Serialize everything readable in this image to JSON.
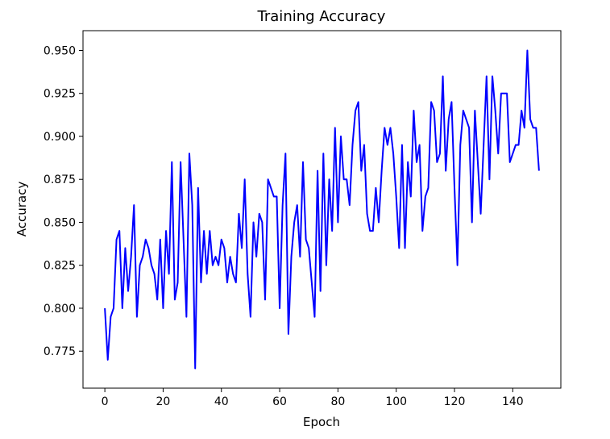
{
  "chart_data": {
    "type": "line",
    "title": "Training Accuracy",
    "xlabel": "Epoch",
    "ylabel": "Accuracy",
    "xlim": [
      -7.5,
      156.5
    ],
    "ylim": [
      0.7535,
      0.9615
    ],
    "x_ticks": [
      0,
      20,
      40,
      60,
      80,
      100,
      120,
      140
    ],
    "y_ticks": [
      0.775,
      0.8,
      0.825,
      0.85,
      0.875,
      0.9,
      0.925,
      0.95
    ],
    "y_tick_labels": [
      "0.775",
      "0.800",
      "0.825",
      "0.850",
      "0.875",
      "0.900",
      "0.925",
      "0.950"
    ],
    "grid": false,
    "legend": "none",
    "series": [
      {
        "color": "#0000ff",
        "x_start": 0,
        "x_step": 1,
        "values": [
          0.8,
          0.77,
          0.795,
          0.8,
          0.84,
          0.845,
          0.8,
          0.835,
          0.81,
          0.83,
          0.86,
          0.795,
          0.825,
          0.83,
          0.84,
          0.835,
          0.825,
          0.82,
          0.805,
          0.84,
          0.8,
          0.845,
          0.82,
          0.885,
          0.805,
          0.815,
          0.885,
          0.84,
          0.795,
          0.89,
          0.86,
          0.765,
          0.87,
          0.815,
          0.845,
          0.82,
          0.845,
          0.825,
          0.83,
          0.825,
          0.84,
          0.835,
          0.815,
          0.83,
          0.82,
          0.815,
          0.855,
          0.835,
          0.875,
          0.82,
          0.795,
          0.85,
          0.83,
          0.855,
          0.85,
          0.805,
          0.875,
          0.87,
          0.865,
          0.865,
          0.8,
          0.86,
          0.89,
          0.785,
          0.83,
          0.85,
          0.86,
          0.83,
          0.885,
          0.84,
          0.835,
          0.815,
          0.795,
          0.88,
          0.81,
          0.89,
          0.825,
          0.875,
          0.845,
          0.905,
          0.85,
          0.9,
          0.875,
          0.875,
          0.86,
          0.895,
          0.915,
          0.92,
          0.88,
          0.895,
          0.855,
          0.845,
          0.845,
          0.87,
          0.85,
          0.88,
          0.905,
          0.895,
          0.905,
          0.89,
          0.865,
          0.835,
          0.895,
          0.835,
          0.885,
          0.865,
          0.915,
          0.885,
          0.895,
          0.845,
          0.865,
          0.87,
          0.92,
          0.915,
          0.885,
          0.89,
          0.935,
          0.88,
          0.91,
          0.92,
          0.87,
          0.825,
          0.895,
          0.915,
          0.91,
          0.905,
          0.85,
          0.915,
          0.885,
          0.855,
          0.895,
          0.935,
          0.875,
          0.935,
          0.915,
          0.89,
          0.925,
          0.925,
          0.925,
          0.885,
          0.89,
          0.895,
          0.895,
          0.915,
          0.905,
          0.95,
          0.91,
          0.905,
          0.905,
          0.88
        ]
      }
    ]
  }
}
